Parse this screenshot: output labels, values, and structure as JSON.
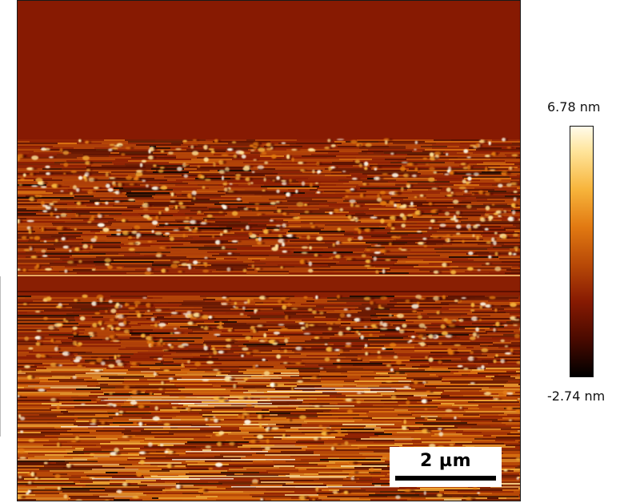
{
  "image": {
    "description_kind": "afm-height-map",
    "colormap": [
      "#000000",
      "#4a0a00",
      "#871a02",
      "#b94a07",
      "#e27a12",
      "#f7b53c",
      "#ffe49a",
      "#fffbea"
    ],
    "background_color": "#871a02"
  },
  "scale_bar": {
    "label": "2 µm"
  },
  "color_bar": {
    "max_label": "6.78 nm",
    "min_label": "-2.74 nm"
  }
}
